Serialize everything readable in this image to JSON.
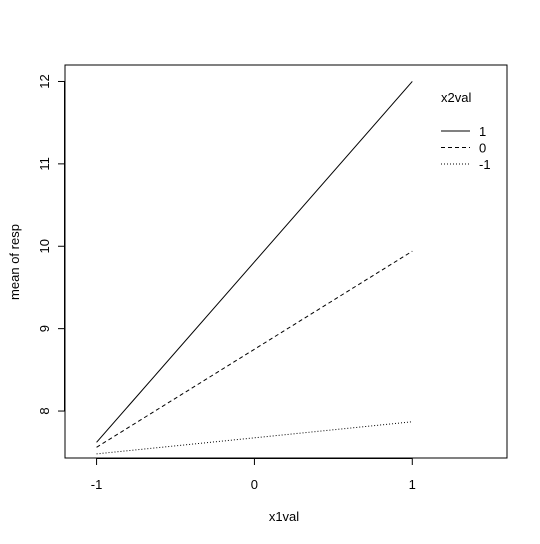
{
  "chart_data": {
    "type": "line",
    "title": "",
    "xlabel": "x1val",
    "ylabel": "mean of  resp",
    "x": [
      -1,
      1
    ],
    "x_tick_labels": [
      "-1",
      "0",
      "1"
    ],
    "y_tick_labels": [
      "8",
      "9",
      "10",
      "11",
      "12"
    ],
    "xlim": [
      -1.2,
      1.6
    ],
    "ylim": [
      7.43,
      12.2
    ],
    "grid": false,
    "legend": {
      "title": "x2val",
      "placement": "top-right",
      "entries": [
        {
          "label": "1",
          "line_style": "solid"
        },
        {
          "label": "0",
          "line_style": "dashed"
        },
        {
          "label": "-1",
          "line_style": "dotted"
        }
      ]
    },
    "series": [
      {
        "name": "1",
        "line_style": "solid",
        "values": [
          7.62,
          12.0
        ]
      },
      {
        "name": "0",
        "line_style": "dashed",
        "values": [
          7.56,
          9.94
        ]
      },
      {
        "name": "-1",
        "line_style": "dotted",
        "values": [
          7.48,
          7.87
        ]
      }
    ],
    "colors": {
      "line": "#000000",
      "axis": "#000000",
      "background": "#ffffff"
    }
  }
}
